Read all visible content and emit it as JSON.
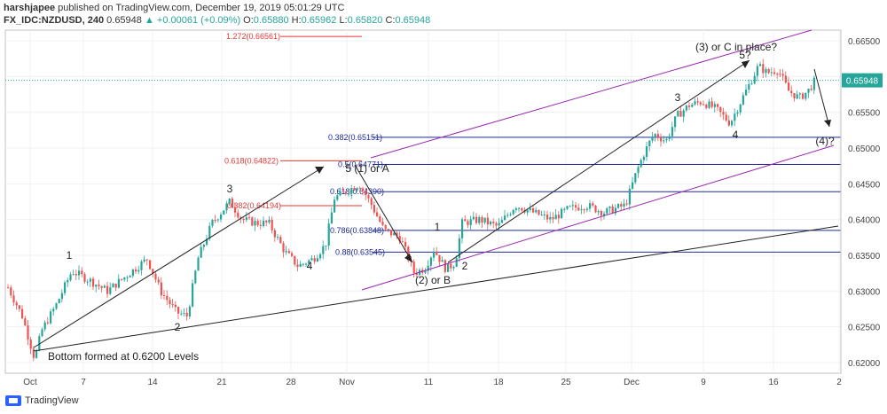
{
  "header": {
    "author": "harshjapee",
    "published_text": "published on TradingView.com, December 19, 2019 05:01:29 UTC",
    "symbol": "FX_IDC:NZDUSD, 240",
    "last": "0.65948",
    "change": "+0.00061 (+0.09%)",
    "o_label": "O:",
    "o_value": "0.65880",
    "h_label": "H:",
    "h_value": "0.65962",
    "l_label": "L:",
    "l_value": "0.65820",
    "c_label": "C:",
    "c_value": "0.65948"
  },
  "footer": {
    "brand": "TradingView"
  },
  "colors": {
    "bull": "#26a69a",
    "bear": "#ef5350",
    "fib_red": "#e53935",
    "fib_blue": "#1e2a96",
    "channel": "#9c27b0",
    "trend": "#222222",
    "price_tag": "#26a69a"
  },
  "chart_data": {
    "type": "candlestick",
    "ylim": [
      0.6185,
      0.6665
    ],
    "y_ticks": [
      "0.66500",
      "0.66000",
      "0.65500",
      "0.65000",
      "0.64500",
      "0.64000",
      "0.63500",
      "0.63000",
      "0.62500",
      "0.62000"
    ],
    "x_ticks": [
      "Oct",
      "7",
      "14",
      "21",
      "28",
      "Nov",
      "11",
      "18",
      "25",
      "Dec",
      "9",
      "16",
      "2"
    ],
    "last_price": "0.65948",
    "grid": true,
    "fib_levels": [
      {
        "label": "1.272(0.66561)",
        "value": 0.66561,
        "color": "red"
      },
      {
        "label": "0.618(0.64822)",
        "value": 0.64822,
        "color": "red"
      },
      {
        "label": "0.382(0.64194)",
        "value": 0.64194,
        "color": "red"
      },
      {
        "label": "0.382(0.65151)",
        "value": 0.65151,
        "color": "blue"
      },
      {
        "label": "0.5(0.64771)",
        "value": 0.64771,
        "color": "blue"
      },
      {
        "label": "0.618(0.64390)",
        "value": 0.6439,
        "color": "blue"
      },
      {
        "label": "0.786(0.63848)",
        "value": 0.63848,
        "color": "blue"
      },
      {
        "label": "0.88(0.63545)",
        "value": 0.63545,
        "color": "blue"
      }
    ],
    "annotations": [
      "1",
      "2",
      "3",
      "4",
      "5 (1) or A",
      "1",
      "2",
      "(2) or B",
      "3",
      "4",
      "5?",
      "(3) or C in place?",
      "(4)?",
      "Bottom formed at 0.6200 Levels"
    ]
  }
}
